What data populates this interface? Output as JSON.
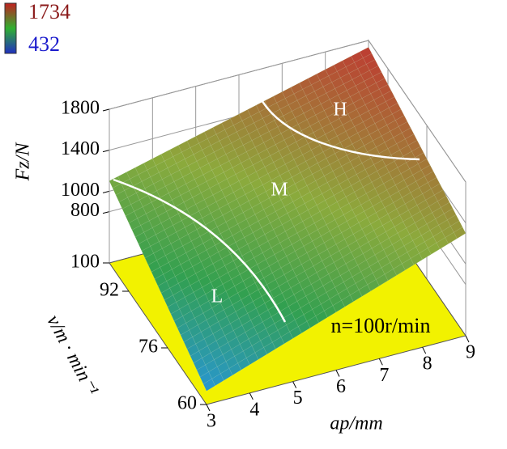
{
  "chart_data": {
    "type": "surface3d",
    "colorbar": {
      "max": 1734,
      "min": 432
    },
    "z_label": "Fz/N",
    "x_label": "ap/mm",
    "y_label": "v/m · min⁻¹",
    "annotation": "n=100r/min",
    "regions": [
      "L",
      "M",
      "H"
    ],
    "x": [
      3,
      9
    ],
    "y": [
      60,
      100
    ],
    "z": [
      [
        432,
        1300
      ],
      [
        1100,
        1734
      ]
    ],
    "xlim": [
      3,
      9
    ],
    "xticks": [
      3,
      4,
      5,
      6,
      7,
      8,
      9
    ],
    "ylim": [
      60,
      100
    ],
    "yticks": [
      60,
      76,
      92,
      100
    ],
    "zlim": [
      300,
      1800
    ],
    "zticks": [
      800,
      1000,
      1400,
      1800
    ],
    "floor_color": "#f2f200"
  }
}
